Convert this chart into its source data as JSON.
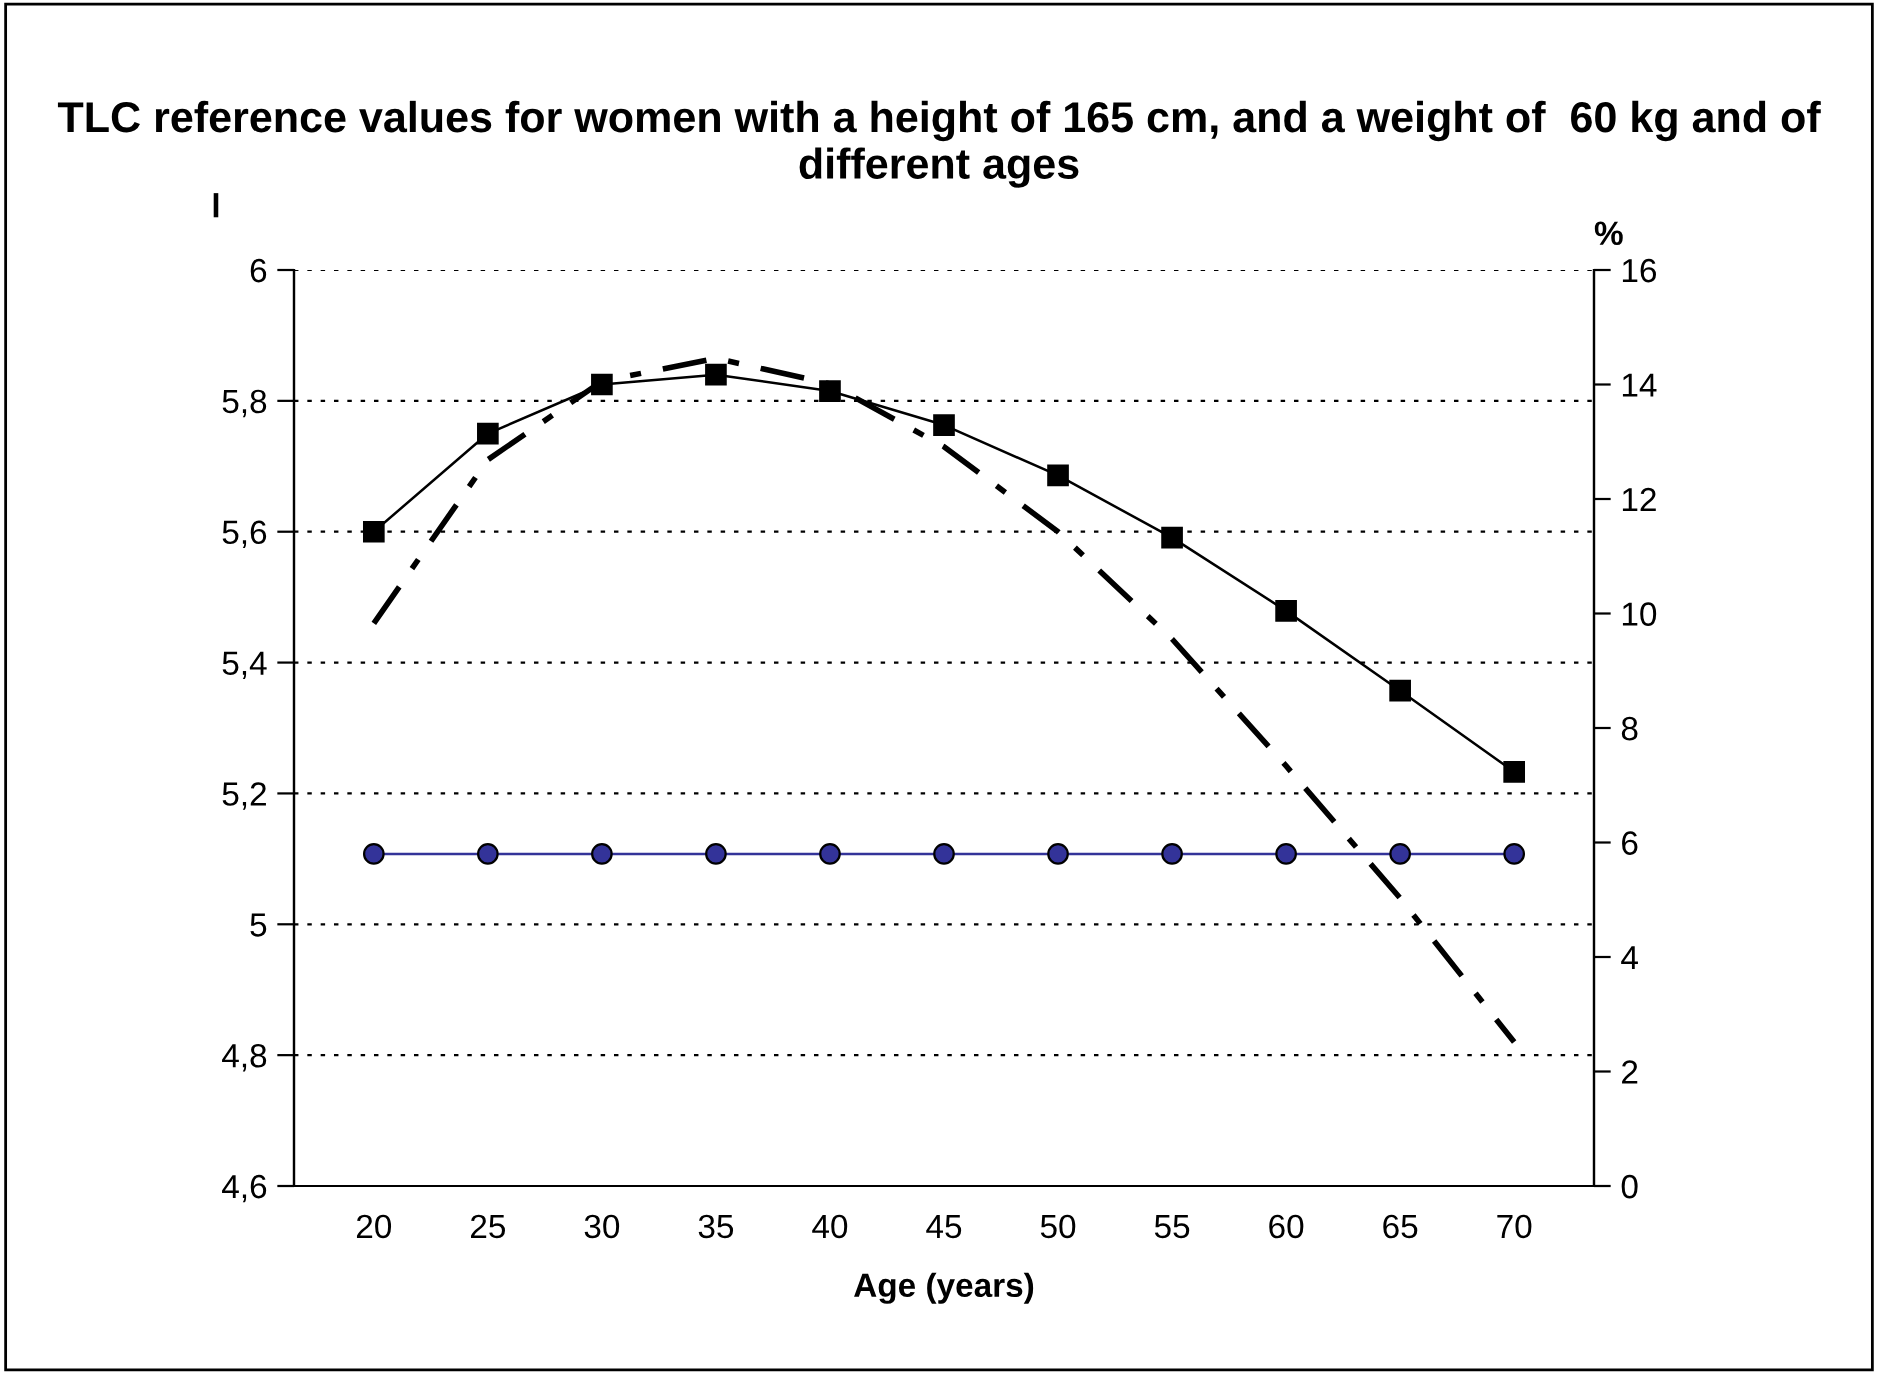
{
  "chart_data": {
    "type": "line",
    "title": "TLC reference values for women with a height of 165 cm, and a weight of  60 kg and of different ages",
    "xlabel": "Age (years)",
    "ylabel": "l",
    "y2label": "%",
    "categories": [
      "20",
      "25",
      "30",
      "35",
      "40",
      "45",
      "50",
      "55",
      "60",
      "65",
      "70"
    ],
    "series": [
      {
        "color": "#000000",
        "marker": "square",
        "line_style": "solid",
        "values": [
          5.6,
          5.75,
          5.825,
          5.84,
          5.815,
          5.763,
          5.686,
          5.591,
          5.479,
          5.357,
          5.233
        ]
      },
      {
        "color": "#000000",
        "marker": "none",
        "line_style": "dashdot",
        "values": [
          5.46,
          5.71,
          5.83,
          5.865,
          5.826,
          5.73,
          5.6,
          5.436,
          5.242,
          5.04,
          4.82
        ]
      },
      {
        "color": "#333399",
        "marker": "circle",
        "line_style": "solid",
        "axis": "y2",
        "values": [
          5.8,
          5.8,
          5.8,
          5.8,
          5.8,
          5.8,
          5.8,
          5.8,
          5.8,
          5.8,
          5.8
        ]
      }
    ],
    "ylim": [
      4.6,
      6
    ],
    "yticks": [
      {
        "value": 4.6,
        "label": "4,6"
      },
      {
        "value": 4.8,
        "label": "4,8"
      },
      {
        "value": 5,
        "label": "5"
      },
      {
        "value": 5.2,
        "label": "5,2"
      },
      {
        "value": 5.4,
        "label": "5,4"
      },
      {
        "value": 5.6,
        "label": "5,6"
      },
      {
        "value": 5.8,
        "label": "5,8"
      },
      {
        "value": 6,
        "label": "6"
      }
    ],
    "y2lim": [
      0,
      16
    ],
    "y2ticks": [
      0,
      2,
      4,
      6,
      8,
      10,
      12,
      14,
      16
    ],
    "grid": "y",
    "legend": false
  }
}
